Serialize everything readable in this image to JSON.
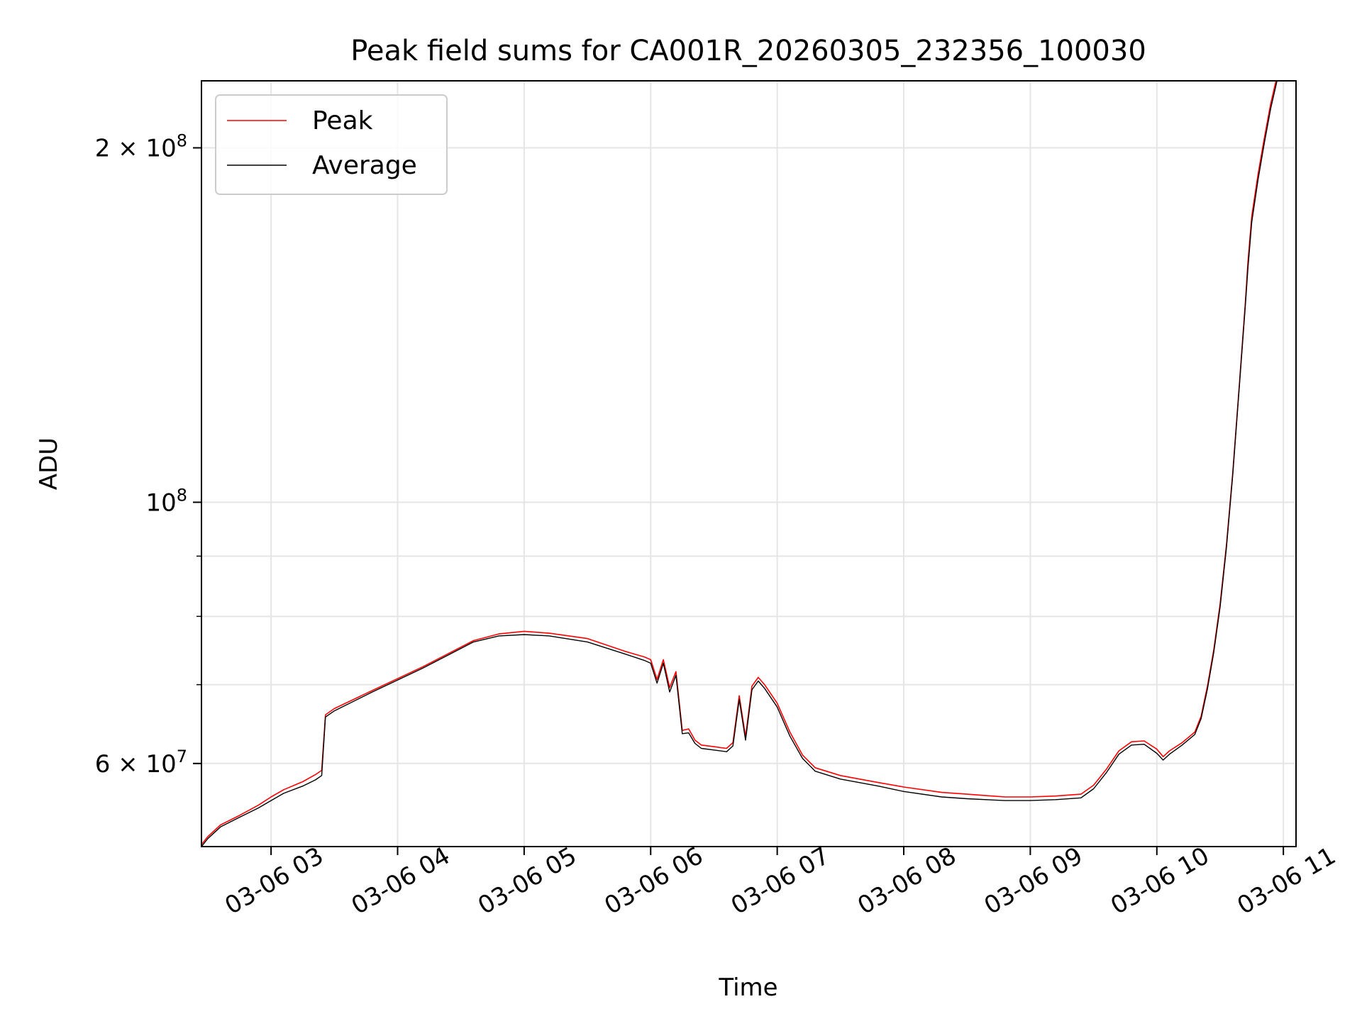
{
  "chart_data": {
    "type": "line",
    "title": "Peak field sums for CA001R_20260305_232356_100030",
    "xlabel": "Time",
    "ylabel": "ADU",
    "yscale": "log",
    "xlim": [
      2.45,
      11.1
    ],
    "ylim": [
      51000000,
      228000000
    ],
    "x_ticks": [
      {
        "value": 3,
        "label": "03-06 03"
      },
      {
        "value": 4,
        "label": "03-06 04"
      },
      {
        "value": 5,
        "label": "03-06 05"
      },
      {
        "value": 6,
        "label": "03-06 06"
      },
      {
        "value": 7,
        "label": "03-06 07"
      },
      {
        "value": 8,
        "label": "03-06 08"
      },
      {
        "value": 9,
        "label": "03-06 09"
      },
      {
        "value": 10,
        "label": "03-06 10"
      },
      {
        "value": 11,
        "label": "03-06 11"
      }
    ],
    "y_major_ticks": [
      {
        "value": 60000000,
        "mantissa": "6",
        "exp": "7"
      },
      {
        "value": 100000000,
        "mantissa": "",
        "exp": "8"
      },
      {
        "value": 200000000,
        "mantissa": "2",
        "exp": "8"
      }
    ],
    "y_minor_ticks": [
      70000000,
      80000000,
      90000000
    ],
    "grid": true,
    "legend_position": "upper-left",
    "series": [
      {
        "name": "Peak",
        "color": "#ff0000",
        "x": [
          2.45,
          2.5,
          2.6,
          2.75,
          2.9,
          3.0,
          3.1,
          3.25,
          3.35,
          3.4,
          3.43,
          3.5,
          3.8,
          4.2,
          4.6,
          4.8,
          5.0,
          5.2,
          5.5,
          5.8,
          5.95,
          6.0,
          6.05,
          6.1,
          6.15,
          6.2,
          6.25,
          6.3,
          6.35,
          6.4,
          6.5,
          6.6,
          6.65,
          6.7,
          6.75,
          6.8,
          6.85,
          6.9,
          7.0,
          7.1,
          7.2,
          7.3,
          7.5,
          7.8,
          8.0,
          8.3,
          8.5,
          8.8,
          9.0,
          9.2,
          9.4,
          9.5,
          9.6,
          9.7,
          9.8,
          9.9,
          10.0,
          10.05,
          10.1,
          10.2,
          10.3,
          10.35,
          10.4,
          10.45,
          10.5,
          10.55,
          10.6,
          10.65,
          10.7,
          10.72,
          10.75,
          10.8,
          10.85,
          10.9,
          10.95
        ],
        "values": [
          51200000,
          52000000,
          53200000,
          54200000,
          55300000,
          56200000,
          57000000,
          57900000,
          58700000,
          59200000,
          66000000,
          66800000,
          69200000,
          72500000,
          76300000,
          77300000,
          77700000,
          77400000,
          76600000,
          74700000,
          73900000,
          73500000,
          70700000,
          73500000,
          69600000,
          71800000,
          64000000,
          64200000,
          62800000,
          62200000,
          62000000,
          61800000,
          62500000,
          68500000,
          63200000,
          69800000,
          71000000,
          70000000,
          67500000,
          63800000,
          61000000,
          59500000,
          58600000,
          57800000,
          57300000,
          56700000,
          56500000,
          56200000,
          56200000,
          56300000,
          56500000,
          57500000,
          59300000,
          61500000,
          62600000,
          62700000,
          61700000,
          60800000,
          61500000,
          62500000,
          63800000,
          65800000,
          69800000,
          75000000,
          82000000,
          92000000,
          106000000,
          125000000,
          148000000,
          160000000,
          175000000,
          190000000,
          204000000,
          218000000,
          230000000
        ]
      },
      {
        "name": "Average",
        "color": "#000000",
        "x": [
          2.45,
          2.5,
          2.6,
          2.75,
          2.9,
          3.0,
          3.1,
          3.25,
          3.35,
          3.4,
          3.43,
          3.5,
          3.8,
          4.2,
          4.6,
          4.8,
          5.0,
          5.2,
          5.5,
          5.8,
          5.95,
          6.0,
          6.05,
          6.1,
          6.15,
          6.2,
          6.25,
          6.3,
          6.35,
          6.4,
          6.5,
          6.6,
          6.65,
          6.7,
          6.75,
          6.8,
          6.85,
          6.9,
          7.0,
          7.1,
          7.2,
          7.3,
          7.5,
          7.8,
          8.0,
          8.3,
          8.5,
          8.8,
          9.0,
          9.2,
          9.4,
          9.5,
          9.6,
          9.7,
          9.8,
          9.9,
          10.0,
          10.05,
          10.1,
          10.2,
          10.3,
          10.35,
          10.4,
          10.45,
          10.5,
          10.55,
          10.6,
          10.65,
          10.7,
          10.72,
          10.75,
          10.8,
          10.85,
          10.9,
          10.95
        ],
        "values": [
          51000000,
          51800000,
          53000000,
          54000000,
          55000000,
          55800000,
          56600000,
          57400000,
          58100000,
          58600000,
          65700000,
          66500000,
          69000000,
          72300000,
          76100000,
          77000000,
          77200000,
          77000000,
          76100000,
          74300000,
          73400000,
          73000000,
          70200000,
          73000000,
          69000000,
          71300000,
          63600000,
          63700000,
          62400000,
          61800000,
          61600000,
          61400000,
          62100000,
          68000000,
          62800000,
          69300000,
          70500000,
          69500000,
          67000000,
          63300000,
          60600000,
          59100000,
          58200000,
          57400000,
          56800000,
          56200000,
          56000000,
          55800000,
          55800000,
          55900000,
          56100000,
          57100000,
          58900000,
          61100000,
          62200000,
          62300000,
          61200000,
          60400000,
          61100000,
          62200000,
          63500000,
          65500000,
          69400000,
          74600000,
          81500000,
          91500000,
          105500000,
          124500000,
          147000000,
          158000000,
          173000000,
          188000000,
          202000000,
          216000000,
          228000000
        ]
      }
    ]
  }
}
